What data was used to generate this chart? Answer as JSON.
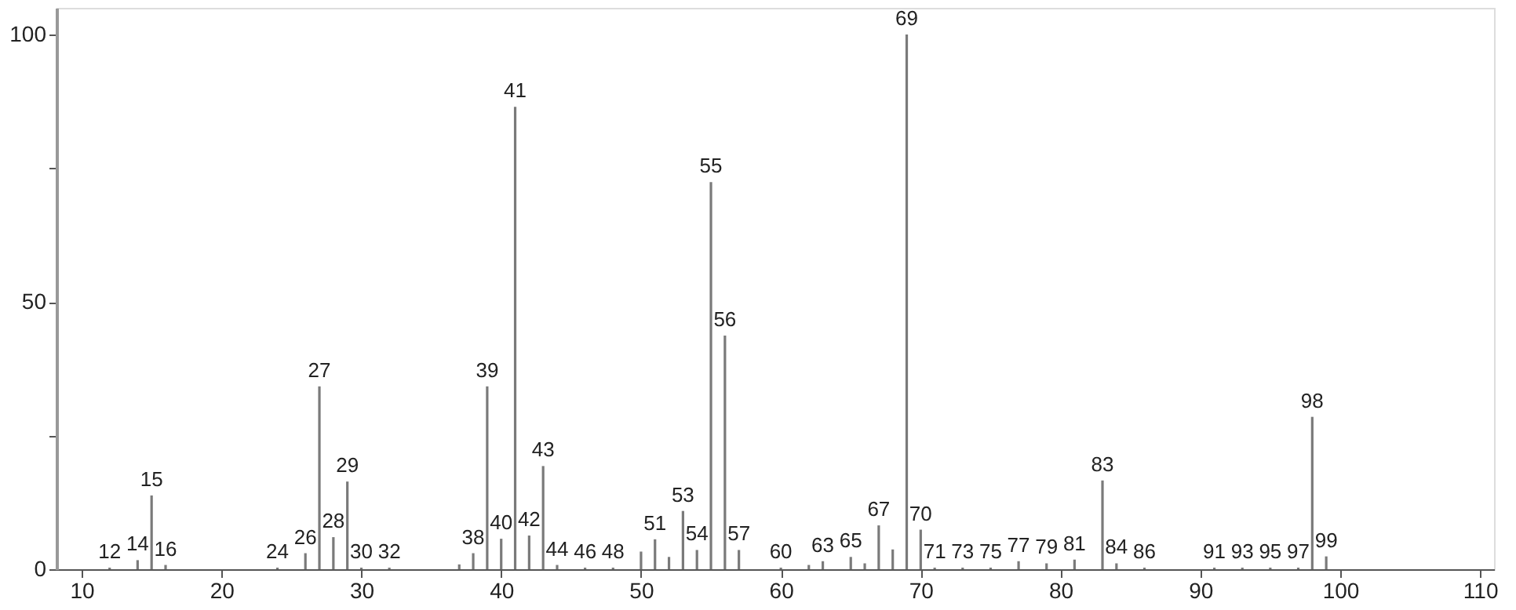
{
  "chart_data": {
    "type": "bar",
    "x": [
      12,
      14,
      15,
      16,
      24,
      26,
      27,
      28,
      29,
      30,
      32,
      37,
      38,
      39,
      40,
      41,
      42,
      43,
      44,
      46,
      48,
      50,
      51,
      52,
      53,
      54,
      55,
      56,
      57,
      60,
      62,
      63,
      65,
      66,
      67,
      68,
      69,
      70,
      71,
      73,
      75,
      77,
      79,
      81,
      83,
      84,
      86,
      91,
      93,
      95,
      97,
      98,
      99
    ],
    "values": [
      0.3,
      1.7,
      13.8,
      0.8,
      0.3,
      3.0,
      34.2,
      6.0,
      16.4,
      0.3,
      0.3,
      0.9,
      3.0,
      34.2,
      5.7,
      86.5,
      6.3,
      19.3,
      0.8,
      0.3,
      0.3,
      3.3,
      5.6,
      2.3,
      10.9,
      3.6,
      72.4,
      43.7,
      3.6,
      0.3,
      0.8,
      1.5,
      2.3,
      1.1,
      8.2,
      3.7,
      100,
      7.4,
      0.3,
      0.3,
      0.3,
      1.5,
      1.1,
      1.8,
      16.6,
      1.1,
      0.3,
      0.3,
      0.3,
      0.3,
      0.3,
      28.5,
      2.4
    ],
    "annotations": [
      {
        "text": "12",
        "x": 12,
        "y": 0.3
      },
      {
        "text": "14",
        "x": 14,
        "y": 1.7
      },
      {
        "text": "15",
        "x": 15,
        "y": 13.8
      },
      {
        "text": "16",
        "x": 16,
        "y": 0.8
      },
      {
        "text": "24",
        "x": 24,
        "y": 0.3
      },
      {
        "text": "26",
        "x": 26,
        "y": 3.0
      },
      {
        "text": "27",
        "x": 27,
        "y": 34.2
      },
      {
        "text": "28",
        "x": 28,
        "y": 6.0
      },
      {
        "text": "29",
        "x": 29,
        "y": 16.4
      },
      {
        "text": "30",
        "x": 30,
        "y": 0.3
      },
      {
        "text": "32",
        "x": 32,
        "y": 0.3
      },
      {
        "text": "38",
        "x": 38,
        "y": 3.0
      },
      {
        "text": "39",
        "x": 39,
        "y": 34.2
      },
      {
        "text": "40",
        "x": 40,
        "y": 5.7
      },
      {
        "text": "41",
        "x": 41,
        "y": 86.5
      },
      {
        "text": "42",
        "x": 42,
        "y": 6.3
      },
      {
        "text": "43",
        "x": 43,
        "y": 19.3
      },
      {
        "text": "44",
        "x": 44,
        "y": 0.8
      },
      {
        "text": "46",
        "x": 46,
        "y": 0.3
      },
      {
        "text": "48",
        "x": 48,
        "y": 0.3
      },
      {
        "text": "51",
        "x": 51,
        "y": 5.6
      },
      {
        "text": "53",
        "x": 53,
        "y": 10.9
      },
      {
        "text": "54",
        "x": 54,
        "y": 3.6
      },
      {
        "text": "55",
        "x": 55,
        "y": 72.4
      },
      {
        "text": "56",
        "x": 56,
        "y": 43.7
      },
      {
        "text": "57",
        "x": 57,
        "y": 3.6
      },
      {
        "text": "60",
        "x": 60,
        "y": 0.3
      },
      {
        "text": "63",
        "x": 63,
        "y": 1.5
      },
      {
        "text": "65",
        "x": 65,
        "y": 2.3
      },
      {
        "text": "67",
        "x": 67,
        "y": 8.2
      },
      {
        "text": "69",
        "x": 69,
        "y": 100
      },
      {
        "text": "70",
        "x": 70,
        "y": 7.4
      },
      {
        "text": "71",
        "x": 71,
        "y": 0.3
      },
      {
        "text": "73",
        "x": 73,
        "y": 0.3
      },
      {
        "text": "75",
        "x": 75,
        "y": 0.3
      },
      {
        "text": "77",
        "x": 77,
        "y": 1.5
      },
      {
        "text": "79",
        "x": 79,
        "y": 1.1
      },
      {
        "text": "81",
        "x": 81,
        "y": 1.8
      },
      {
        "text": "83",
        "x": 83,
        "y": 16.6
      },
      {
        "text": "84",
        "x": 84,
        "y": 1.1
      },
      {
        "text": "86",
        "x": 86,
        "y": 0.3
      },
      {
        "text": "91",
        "x": 91,
        "y": 0.3
      },
      {
        "text": "93",
        "x": 93,
        "y": 0.3
      },
      {
        "text": "95",
        "x": 95,
        "y": 0.3
      },
      {
        "text": "97",
        "x": 97,
        "y": 0.3
      },
      {
        "text": "98",
        "x": 98,
        "y": 28.5
      },
      {
        "text": "99",
        "x": 99,
        "y": 2.4
      }
    ],
    "color": "#7a7a7a",
    "xlim": [
      8.2,
      111
    ],
    "xticks": [
      10,
      20,
      30,
      40,
      50,
      60,
      70,
      80,
      90,
      100,
      110
    ],
    "ylim": [
      0,
      105
    ],
    "yticks": [
      0,
      {
        "value": 25,
        "label": null
      },
      50,
      {
        "value": 75,
        "label": null
      },
      100
    ],
    "grid": false
  }
}
